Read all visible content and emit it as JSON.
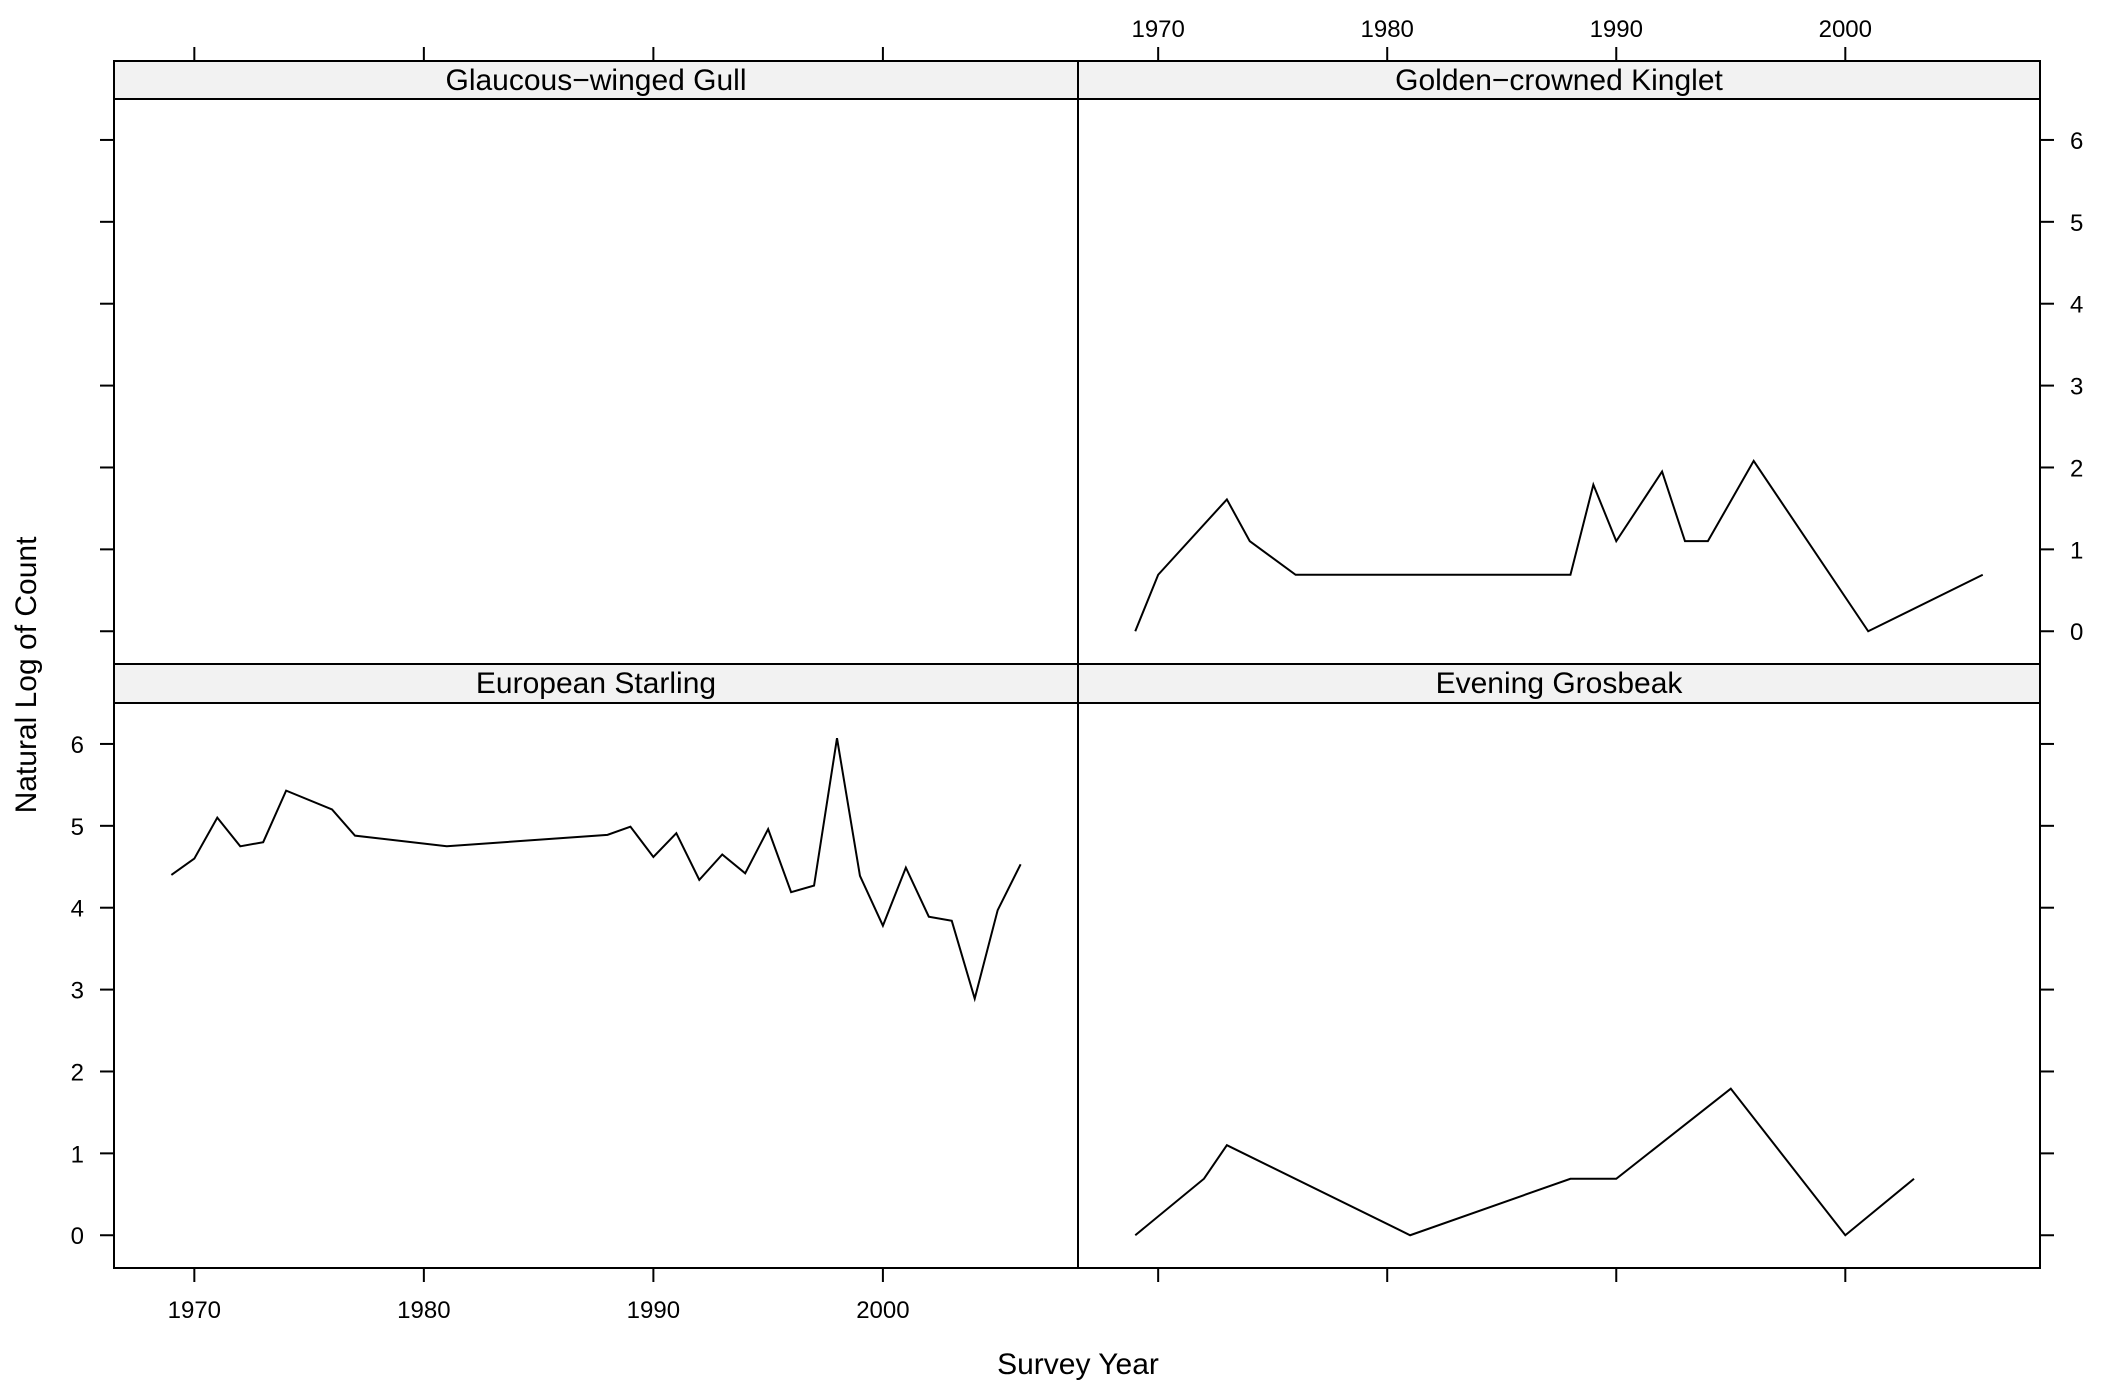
{
  "chart_data": {
    "type": "line",
    "layout": "lattice 2x2",
    "xlabel": "Survey Year",
    "ylabel": "Natural Log of Count",
    "xlim": [
      1966.5,
      2008.5
    ],
    "ylim": [
      -0.4,
      6.5
    ],
    "x_ticks": [
      1970,
      1980,
      1990,
      2000
    ],
    "x_tick_labels": [
      "1970",
      "1980",
      "1990",
      "2000"
    ],
    "y_ticks": [
      0,
      1,
      2,
      3,
      4,
      5,
      6
    ],
    "y_tick_labels": [
      "0",
      "1",
      "2",
      "3",
      "4",
      "5",
      "6"
    ],
    "grid": false,
    "panels": [
      {
        "name": "Glaucous−winged Gull",
        "x": [],
        "y": []
      },
      {
        "name": "Golden−crowned Kinglet",
        "x": [
          1969,
          1970,
          1973,
          1974,
          1976,
          1988,
          1989,
          1990,
          1992,
          1993,
          1994,
          1996,
          2001,
          2006
        ],
        "y": [
          0,
          0.69,
          1.61,
          1.1,
          0.69,
          0.69,
          1.79,
          1.1,
          1.95,
          1.1,
          1.1,
          2.08,
          0,
          0.69
        ]
      },
      {
        "name": "European Starling",
        "x": [
          1969,
          1970,
          1971,
          1972,
          1973,
          1974,
          1976,
          1977,
          1981,
          1988,
          1989,
          1990,
          1991,
          1992,
          1993,
          1994,
          1995,
          1996,
          1997,
          1998,
          1999,
          2000,
          2001,
          2002,
          2003,
          2004,
          2005,
          2006
        ],
        "y": [
          4.4,
          4.6,
          5.1,
          4.75,
          4.8,
          5.43,
          5.2,
          4.88,
          4.75,
          4.89,
          4.99,
          4.62,
          4.91,
          4.34,
          4.65,
          4.42,
          4.96,
          4.19,
          4.27,
          6.07,
          4.39,
          3.78,
          4.49,
          3.89,
          3.84,
          2.89,
          3.97,
          4.53
        ]
      },
      {
        "name": "Evening Grosbeak",
        "x": [
          1969,
          1972,
          1973,
          1981,
          1988,
          1990,
          1995,
          2000,
          2003
        ],
        "y": [
          0,
          0.69,
          1.1,
          0,
          0.69,
          0.69,
          1.79,
          0,
          0.69
        ]
      }
    ]
  }
}
